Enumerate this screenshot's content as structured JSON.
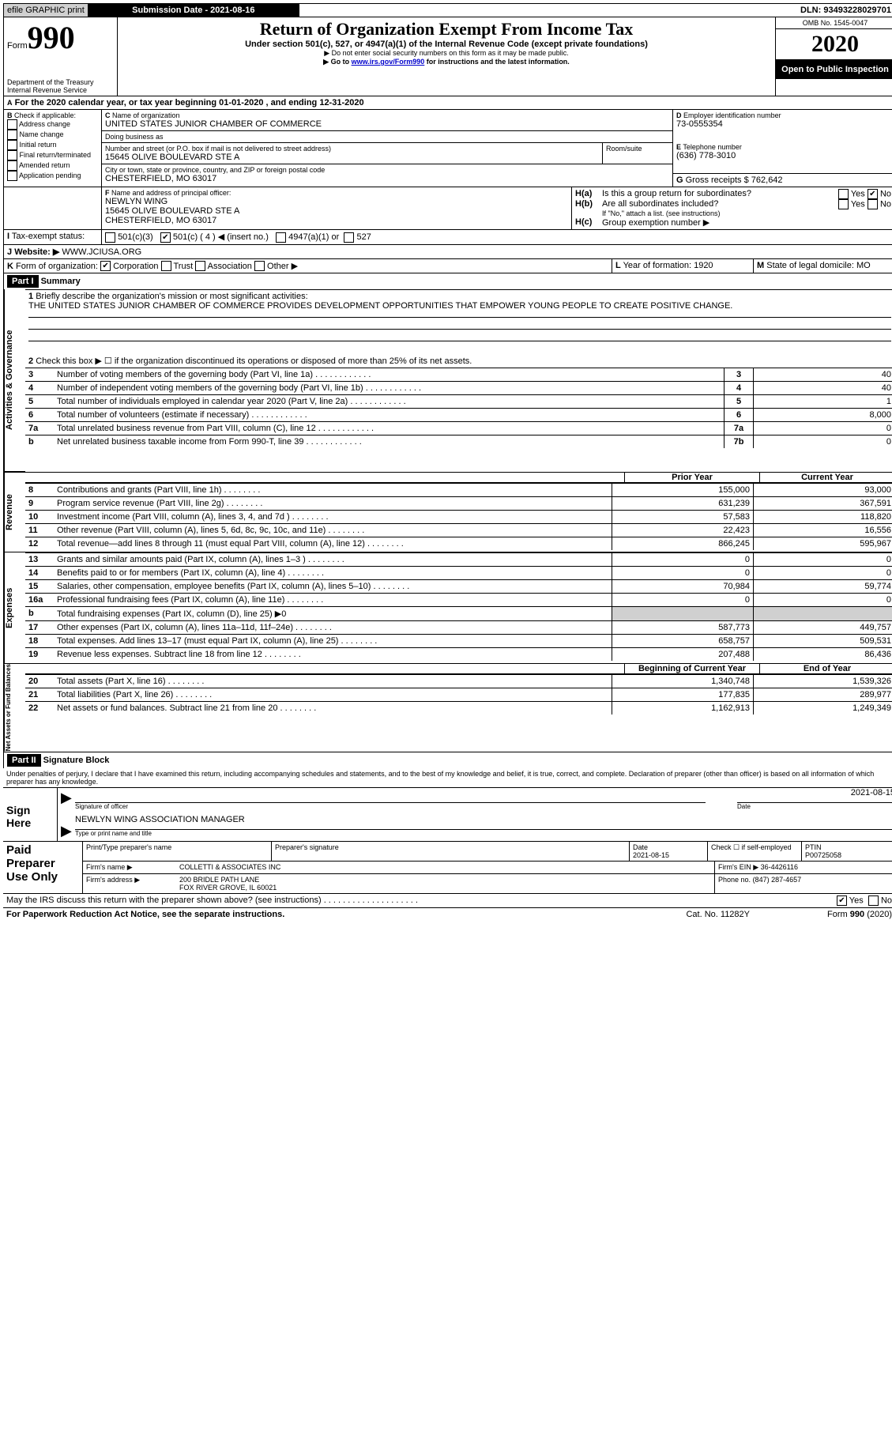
{
  "topbar": {
    "efile": "efile GRAPHIC print",
    "sub_label": "Submission Date - 2021-08-16",
    "dln": "DLN: 93493228029701"
  },
  "header": {
    "form_word": "Form",
    "form_num": "990",
    "dept": "Department of the Treasury",
    "irs": "Internal Revenue Service",
    "title": "Return of Organization Exempt From Income Tax",
    "subtitle": "Under section 501(c), 527, or 4947(a)(1) of the Internal Revenue Code (except private foundations)",
    "ssn_note": "Do not enter social security numbers on this form as it may be made public.",
    "goto_pre": "Go to ",
    "goto_link": "www.irs.gov/Form990",
    "goto_post": " for instructions and the latest information.",
    "omb": "OMB No. 1545-0047",
    "year": "2020",
    "open": "Open to Public Inspection"
  },
  "lineA": "For the 2020 calendar year, or tax year beginning 01-01-2020    , and ending 12-31-2020",
  "B": {
    "label": "Check if applicable:",
    "opts": [
      "Address change",
      "Name change",
      "Initial return",
      "Final return/terminated",
      "Amended return",
      "Application pending"
    ]
  },
  "C": {
    "name_label": "Name of organization",
    "name": "UNITED STATES JUNIOR CHAMBER OF COMMERCE",
    "dba_label": "Doing business as",
    "dba": "",
    "addr_label": "Number and street (or P.O. box if mail is not delivered to street address)",
    "room_label": "Room/suite",
    "addr": "15645 OLIVE BOULEVARD STE A",
    "city_label": "City or town, state or province, country, and ZIP or foreign postal code",
    "city": "CHESTERFIELD, MO  63017"
  },
  "D": {
    "label": "Employer identification number",
    "val": "73-0555354"
  },
  "E": {
    "label": "Telephone number",
    "val": "(636) 778-3010"
  },
  "G": {
    "label": "Gross receipts $",
    "val": "762,642"
  },
  "F": {
    "label": "Name and address of principal officer:",
    "name": "NEWLYN WING",
    "addr1": "15645 OLIVE BOULEVARD STE A",
    "addr2": "CHESTERFIELD, MO  63017"
  },
  "H": {
    "a": "Is this a group return for subordinates?",
    "b": "Are all subordinates included?",
    "b_note": "If \"No,\" attach a list. (see instructions)",
    "c": "Group exemption number ▶",
    "yes": "Yes",
    "no": "No"
  },
  "I": {
    "label": "Tax-exempt status:",
    "c3": "501(c)(3)",
    "c4": "501(c) ( 4 ) ◀ (insert no.)",
    "a1": "4947(a)(1) or",
    "c527": "527"
  },
  "J": {
    "label": "Website: ▶",
    "val": "WWW.JCIUSA.ORG"
  },
  "K": {
    "label": "Form of organization:",
    "corp": "Corporation",
    "trust": "Trust",
    "assoc": "Association",
    "other": "Other ▶"
  },
  "L": {
    "label": "Year of formation:",
    "val": "1920"
  },
  "M": {
    "label": "State of legal domicile:",
    "val": "MO"
  },
  "part1": {
    "header": "Part I",
    "title": "Summary",
    "q1_label": "Briefly describe the organization's mission or most significant activities:",
    "q1_text": "THE UNITED STATES JUNIOR CHAMBER OF COMMERCE PROVIDES DEVELOPMENT OPPORTUNITIES THAT EMPOWER YOUNG PEOPLE TO CREATE POSITIVE CHANGE.",
    "q2": "Check this box ▶ ☐ if the organization discontinued its operations or disposed of more than 25% of its net assets.",
    "rows_top": [
      {
        "n": "3",
        "t": "Number of voting members of the governing body (Part VI, line 1a)",
        "box": "3",
        "v": "40"
      },
      {
        "n": "4",
        "t": "Number of independent voting members of the governing body (Part VI, line 1b)",
        "box": "4",
        "v": "40"
      },
      {
        "n": "5",
        "t": "Total number of individuals employed in calendar year 2020 (Part V, line 2a)",
        "box": "5",
        "v": "1"
      },
      {
        "n": "6",
        "t": "Total number of volunteers (estimate if necessary)",
        "box": "6",
        "v": "8,000"
      },
      {
        "n": "7a",
        "t": "Total unrelated business revenue from Part VIII, column (C), line 12",
        "box": "7a",
        "v": "0"
      },
      {
        "n": "b",
        "t": "Net unrelated business taxable income from Form 990-T, line 39",
        "box": "7b",
        "v": "0"
      }
    ],
    "prior_h": "Prior Year",
    "curr_h": "Current Year",
    "revenue": [
      {
        "n": "8",
        "t": "Contributions and grants (Part VIII, line 1h)",
        "p": "155,000",
        "c": "93,000"
      },
      {
        "n": "9",
        "t": "Program service revenue (Part VIII, line 2g)",
        "p": "631,239",
        "c": "367,591"
      },
      {
        "n": "10",
        "t": "Investment income (Part VIII, column (A), lines 3, 4, and 7d )",
        "p": "57,583",
        "c": "118,820"
      },
      {
        "n": "11",
        "t": "Other revenue (Part VIII, column (A), lines 5, 6d, 8c, 9c, 10c, and 11e)",
        "p": "22,423",
        "c": "16,556"
      },
      {
        "n": "12",
        "t": "Total revenue—add lines 8 through 11 (must equal Part VIII, column (A), line 12)",
        "p": "866,245",
        "c": "595,967"
      }
    ],
    "expenses": [
      {
        "n": "13",
        "t": "Grants and similar amounts paid (Part IX, column (A), lines 1–3 )",
        "p": "0",
        "c": "0"
      },
      {
        "n": "14",
        "t": "Benefits paid to or for members (Part IX, column (A), line 4)",
        "p": "0",
        "c": "0"
      },
      {
        "n": "15",
        "t": "Salaries, other compensation, employee benefits (Part IX, column (A), lines 5–10)",
        "p": "70,984",
        "c": "59,774"
      },
      {
        "n": "16a",
        "t": "Professional fundraising fees (Part IX, column (A), line 11e)",
        "p": "0",
        "c": "0"
      },
      {
        "n": "b",
        "t": "Total fundraising expenses (Part IX, column (D), line 25) ▶0",
        "p": "",
        "c": "",
        "gray": true
      },
      {
        "n": "17",
        "t": "Other expenses (Part IX, column (A), lines 11a–11d, 11f–24e)",
        "p": "587,773",
        "c": "449,757"
      },
      {
        "n": "18",
        "t": "Total expenses. Add lines 13–17 (must equal Part IX, column (A), line 25)",
        "p": "658,757",
        "c": "509,531"
      },
      {
        "n": "19",
        "t": "Revenue less expenses. Subtract line 18 from line 12",
        "p": "207,488",
        "c": "86,436"
      }
    ],
    "beg_h": "Beginning of Current Year",
    "end_h": "End of Year",
    "net": [
      {
        "n": "20",
        "t": "Total assets (Part X, line 16)",
        "p": "1,340,748",
        "c": "1,539,326"
      },
      {
        "n": "21",
        "t": "Total liabilities (Part X, line 26)",
        "p": "177,835",
        "c": "289,977"
      },
      {
        "n": "22",
        "t": "Net assets or fund balances. Subtract line 21 from line 20",
        "p": "1,162,913",
        "c": "1,249,349"
      }
    ],
    "side_labels": {
      "ag": "Activities & Governance",
      "rev": "Revenue",
      "exp": "Expenses",
      "net": "Net Assets or Fund Balances"
    }
  },
  "part2": {
    "header": "Part II",
    "title": "Signature Block",
    "penalty": "Under penalties of perjury, I declare that I have examined this return, including accompanying schedules and statements, and to the best of my knowledge and belief, it is true, correct, and complete. Declaration of preparer (other than officer) is based on all information of which preparer has any knowledge.",
    "sign_here": "Sign Here",
    "sig_officer": "Signature of officer",
    "sig_date": "Date",
    "sig_date_val": "2021-08-15",
    "officer_name": "NEWLYN WING  ASSOCIATION MANAGER",
    "type_name": "Type or print name and title",
    "paid": "Paid Preparer Use Only",
    "prep_name_h": "Print/Type preparer's name",
    "prep_sig_h": "Preparer's signature",
    "prep_date_h": "Date",
    "prep_date_val": "2021-08-15",
    "prep_check": "Check ☐ if self-employed",
    "ptin_h": "PTIN",
    "ptin": "P00725058",
    "firm_name_h": "Firm's name    ▶",
    "firm_name": "COLLETTI & ASSOCIATES INC",
    "firm_ein_h": "Firm's EIN ▶",
    "firm_ein": "36-4426116",
    "firm_addr_h": "Firm's address ▶",
    "firm_addr1": "200 BRIDLE PATH LANE",
    "firm_addr2": "FOX RIVER GROVE, IL  60021",
    "phone_h": "Phone no.",
    "phone": "(847) 287-4657",
    "discuss": "May the IRS discuss this return with the preparer shown above? (see instructions)",
    "yes": "Yes",
    "no": "No"
  },
  "footer": {
    "pra": "For Paperwork Reduction Act Notice, see the separate instructions.",
    "cat": "Cat. No. 11282Y",
    "form": "Form 990 (2020)"
  }
}
